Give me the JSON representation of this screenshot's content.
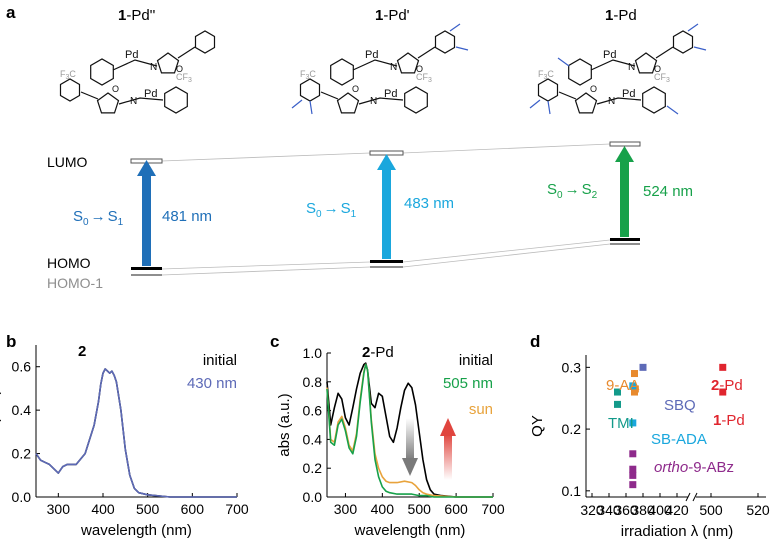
{
  "panels": {
    "a": "a",
    "b": "b",
    "c": "c",
    "d": "d"
  },
  "colors": {
    "blue": "#1F6FB8",
    "cyan": "#1AA7DD",
    "green": "#17A14A",
    "orange": "#E88A2E",
    "red": "#E0252E",
    "purple": "#8E2A8B",
    "slate": "#5D6AB7",
    "teal": "#139A8A",
    "gray": "#8E8E8E",
    "lightgray": "#B9B9B9"
  },
  "energy_diagram": {
    "molecules": [
      {
        "bold": "1",
        "suffix": "-Pd''"
      },
      {
        "bold": "1",
        "suffix": "-Pd'"
      },
      {
        "bold": "1",
        "suffix": "-Pd"
      }
    ],
    "lumo_label": "LUMO",
    "homo_label": "HOMO",
    "homo1_label": "HOMO-1",
    "transitions": [
      {
        "from": "S",
        "from_sub": "0",
        "arrow": "→",
        "to": "S",
        "to_sub": "1",
        "wavelength": "481 nm"
      },
      {
        "from": "S",
        "from_sub": "0",
        "arrow": "→",
        "to": "S",
        "to_sub": "1",
        "wavelength": "483 nm"
      },
      {
        "from": "S",
        "from_sub": "0",
        "arrow": "→",
        "to": "S",
        "to_sub": "2",
        "wavelength": "524 nm"
      }
    ],
    "structure_labels": {
      "pd": "Pd",
      "o": "O",
      "n": "N",
      "cf3": "CF",
      "cf3_sub": "3",
      "f3c": "F",
      "f3c_sub": "3",
      "f3c_c": "C"
    }
  },
  "chart_data": [
    {
      "type": "line",
      "panel": "b",
      "label": "2",
      "xlabel": "wavelength (nm)",
      "ylabel": "abs (a.u.)",
      "xlim": [
        250,
        700
      ],
      "ylim": [
        0,
        0.7
      ],
      "xticks": [
        300,
        400,
        500,
        600,
        700
      ],
      "yticks": [
        0.0,
        0.2,
        0.4,
        0.6
      ],
      "xtick_labels": [
        "300",
        "400",
        "500",
        "600",
        "700"
      ],
      "ytick_labels": [
        "0.0",
        "0.2",
        "0.4",
        "0.6"
      ],
      "legend": [
        {
          "name": "initial",
          "color": "#000000"
        },
        {
          "name": "430 nm",
          "color": "#5D6AB7"
        }
      ],
      "series": [
        {
          "name": "initial",
          "x": [
            250,
            260,
            270,
            280,
            290,
            300,
            310,
            320,
            340,
            360,
            380,
            390,
            395,
            400,
            405,
            410,
            415,
            420,
            425,
            430,
            440,
            450,
            460,
            470,
            480,
            500,
            550,
            600,
            650,
            700
          ],
          "y": [
            0.2,
            0.17,
            0.16,
            0.15,
            0.13,
            0.11,
            0.14,
            0.15,
            0.15,
            0.2,
            0.33,
            0.44,
            0.52,
            0.57,
            0.59,
            0.58,
            0.57,
            0.58,
            0.56,
            0.53,
            0.4,
            0.22,
            0.1,
            0.04,
            0.02,
            0.01,
            0.0,
            0.0,
            0.0,
            0.0
          ]
        },
        {
          "name": "430 nm",
          "x": [
            250,
            260,
            270,
            280,
            290,
            300,
            310,
            320,
            340,
            360,
            380,
            390,
            395,
            400,
            405,
            410,
            415,
            420,
            425,
            430,
            440,
            450,
            460,
            470,
            480,
            500,
            550,
            600,
            650,
            700
          ],
          "y": [
            0.2,
            0.17,
            0.16,
            0.15,
            0.13,
            0.11,
            0.14,
            0.15,
            0.15,
            0.2,
            0.33,
            0.44,
            0.52,
            0.57,
            0.59,
            0.58,
            0.57,
            0.58,
            0.56,
            0.53,
            0.4,
            0.22,
            0.1,
            0.04,
            0.02,
            0.01,
            0.0,
            0.0,
            0.0,
            0.0
          ]
        }
      ]
    },
    {
      "type": "line",
      "panel": "c",
      "label_bold": "2",
      "label_suffix": "-Pd",
      "xlabel": "wavelength (nm)",
      "ylabel": "abs (a.u.)",
      "xlim": [
        250,
        700
      ],
      "ylim": [
        0,
        1.0
      ],
      "xticks": [
        300,
        400,
        500,
        600,
        700
      ],
      "yticks": [
        0.0,
        0.2,
        0.4,
        0.6,
        0.8,
        1.0
      ],
      "xtick_labels": [
        "300",
        "400",
        "500",
        "600",
        "700"
      ],
      "ytick_labels": [
        "0.0",
        "0.2",
        "0.4",
        "0.6",
        "0.8",
        "1.0"
      ],
      "legend": [
        {
          "name": "initial",
          "color": "#000000"
        },
        {
          "name": "505 nm",
          "color": "#17A14A"
        },
        {
          "name": "sun",
          "color": "#E8A33C"
        }
      ],
      "series": [
        {
          "name": "initial",
          "x": [
            250,
            260,
            270,
            280,
            290,
            300,
            310,
            320,
            330,
            340,
            350,
            355,
            360,
            370,
            380,
            390,
            400,
            410,
            420,
            430,
            440,
            450,
            460,
            470,
            480,
            490,
            500,
            510,
            520,
            530,
            540,
            560,
            600,
            700
          ],
          "y": [
            0.8,
            0.5,
            0.62,
            0.72,
            0.68,
            0.55,
            0.5,
            0.62,
            0.75,
            0.86,
            0.92,
            0.93,
            0.88,
            0.65,
            0.62,
            0.72,
            0.7,
            0.56,
            0.42,
            0.38,
            0.48,
            0.62,
            0.74,
            0.79,
            0.76,
            0.64,
            0.45,
            0.26,
            0.12,
            0.05,
            0.02,
            0.01,
            0.0,
            0.0
          ]
        },
        {
          "name": "505 nm",
          "x": [
            250,
            260,
            270,
            280,
            290,
            300,
            310,
            320,
            330,
            340,
            350,
            355,
            360,
            370,
            380,
            390,
            400,
            410,
            420,
            440,
            460,
            480,
            500,
            520,
            540,
            600,
            700
          ],
          "y": [
            0.75,
            0.38,
            0.36,
            0.5,
            0.54,
            0.46,
            0.34,
            0.3,
            0.42,
            0.66,
            0.86,
            0.92,
            0.88,
            0.52,
            0.26,
            0.14,
            0.07,
            0.04,
            0.03,
            0.02,
            0.02,
            0.02,
            0.01,
            0.01,
            0.0,
            0.0,
            0.0
          ]
        },
        {
          "name": "sun",
          "x": [
            250,
            260,
            270,
            280,
            290,
            300,
            310,
            320,
            330,
            340,
            350,
            355,
            360,
            370,
            380,
            390,
            400,
            410,
            420,
            440,
            460,
            480,
            490,
            500,
            510,
            520,
            540,
            600,
            700
          ],
          "y": [
            0.76,
            0.4,
            0.38,
            0.52,
            0.56,
            0.48,
            0.36,
            0.32,
            0.44,
            0.68,
            0.87,
            0.92,
            0.88,
            0.54,
            0.3,
            0.2,
            0.14,
            0.11,
            0.1,
            0.1,
            0.11,
            0.1,
            0.08,
            0.05,
            0.03,
            0.02,
            0.01,
            0.0,
            0.0
          ]
        }
      ]
    },
    {
      "type": "scatter",
      "panel": "d",
      "xlabel": "irradiation λ (nm)",
      "ylabel": "QY",
      "xtick_labels": [
        "320",
        "340",
        "360",
        "380",
        "400",
        "420",
        "500",
        "520"
      ],
      "ytick_labels": [
        "0.1",
        "0.2",
        "0.3"
      ],
      "ylim": [
        0.09,
        0.32
      ],
      "axis_break_between": [
        420,
        500
      ],
      "groups": [
        {
          "name": "9-AA",
          "color": "#E88A2E",
          "points": [
            [
              370,
              0.29
            ],
            [
              371,
              0.265
            ],
            [
              370,
              0.26
            ]
          ]
        },
        {
          "name": "SBQ",
          "color": "#5D6AB7",
          "points": [
            [
              380,
              0.3
            ]
          ]
        },
        {
          "name": "TMI",
          "color": "#139A8A",
          "points": [
            [
              350,
              0.26
            ],
            [
              350,
              0.24
            ]
          ]
        },
        {
          "name": "SB-ADA",
          "color": "#1AA7DD",
          "points": [
            [
              368,
              0.27
            ],
            [
              368,
              0.21
            ]
          ]
        },
        {
          "name": "ortho-9-ABz",
          "label_italic": "ortho",
          "label_rest": "-9-ABz",
          "color": "#8E2A8B",
          "points": [
            [
              368,
              0.16
            ],
            [
              368,
              0.135
            ],
            [
              368,
              0.125
            ],
            [
              368,
              0.11
            ]
          ]
        },
        {
          "name": "2-Pd",
          "label_bold": "2",
          "label_rest": "-Pd",
          "color": "#E0252E",
          "points": [
            [
              505,
              0.3
            ]
          ]
        },
        {
          "name": "1-Pd",
          "label_bold": "1",
          "label_rest": "-Pd",
          "color": "#E0252E",
          "points": [
            [
              505,
              0.26
            ]
          ]
        }
      ]
    }
  ]
}
